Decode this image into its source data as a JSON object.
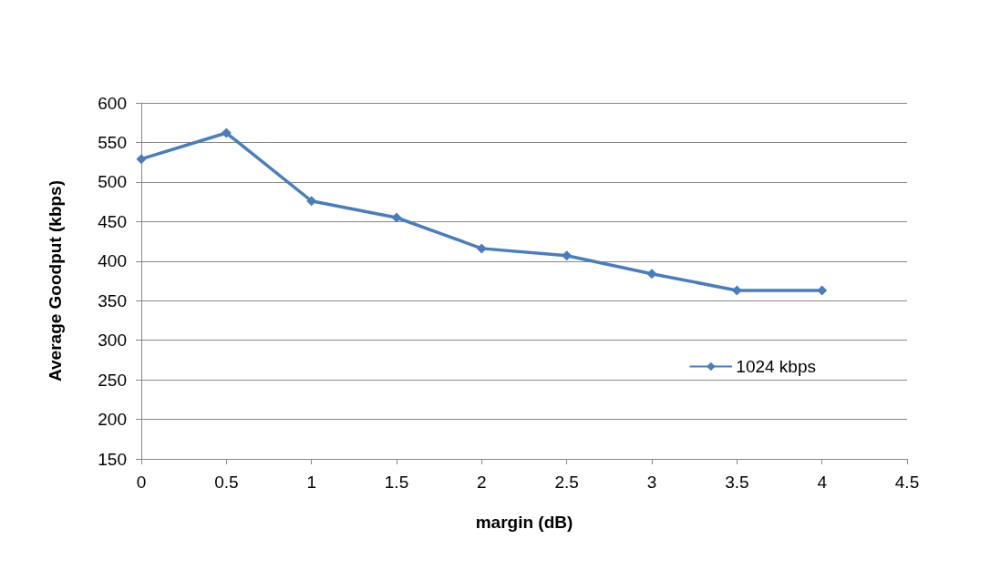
{
  "chart_data": {
    "type": "line",
    "xlabel": "margin (dB)",
    "ylabel": "Average Goodput (kbps)",
    "x": [
      0,
      0.5,
      1,
      1.5,
      2,
      2.5,
      3,
      3.5,
      4
    ],
    "series": [
      {
        "name": "1024 kbps",
        "color": "#4a7ebb",
        "values": [
          529,
          562,
          476,
          455,
          416,
          407,
          384,
          363,
          363
        ]
      }
    ],
    "xlim": [
      0,
      4.5
    ],
    "xticks": [
      0,
      0.5,
      1,
      1.5,
      2,
      2.5,
      3,
      3.5,
      4,
      4.5
    ],
    "ylim": [
      150,
      600
    ],
    "yticks": [
      150,
      200,
      250,
      300,
      350,
      400,
      450,
      500,
      550,
      600
    ],
    "grid": "y",
    "legend": "right",
    "marker": "diamond",
    "line_style": "solid"
  }
}
